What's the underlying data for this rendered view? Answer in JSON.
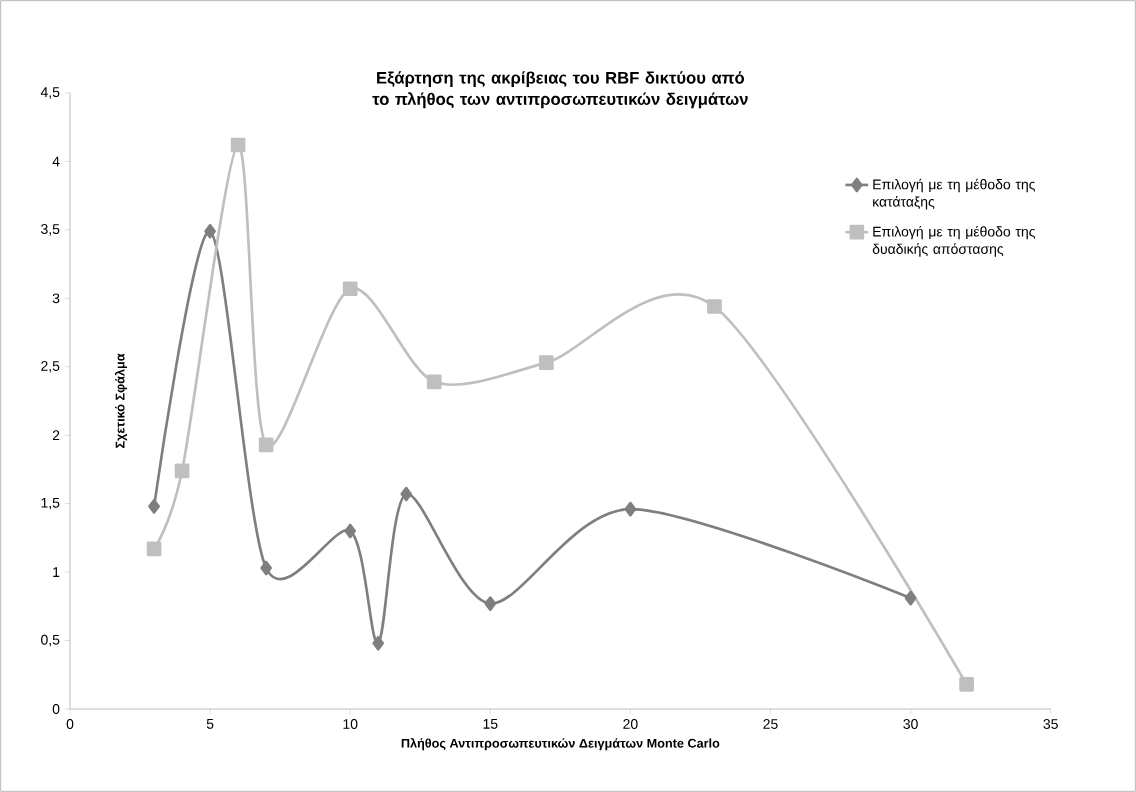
{
  "chart_data": {
    "type": "line",
    "title": "Εξάρτηση της ακρίβειας του RBF δικτύου από το πλήθος των αντιπροσωπευτικών δειγμάτων",
    "xlabel": "Πλήθος Αντιπροσωπευτικών Δειγμάτων Monte Carlo",
    "ylabel": "Σχετικό Σφάλμα",
    "series": [
      {
        "name": "Επιλογή με τη μέθοδο της κατάταξης",
        "color": "#7f7f7f",
        "marker": "diamond",
        "x": [
          3,
          5,
          7,
          10,
          11,
          12,
          15,
          20,
          30
        ],
        "values": [
          1.48,
          3.49,
          1.03,
          1.3,
          0.48,
          1.57,
          0.77,
          1.46,
          0.81
        ]
      },
      {
        "name": "Επιλογή με τη μέθοδο της δυαδικής απόστασης",
        "color": "#bfbfbf",
        "marker": "square",
        "x": [
          3,
          4,
          6,
          7,
          10,
          13,
          17,
          23,
          32
        ],
        "values": [
          1.17,
          1.74,
          4.12,
          1.93,
          3.07,
          2.39,
          2.53,
          2.94,
          0.18
        ]
      }
    ],
    "xlim": [
      0,
      35
    ],
    "xticks": [
      0,
      5,
      10,
      15,
      20,
      25,
      30,
      35
    ],
    "ylim": [
      0,
      4.5
    ],
    "yticks": [
      0,
      {
        "value": 0.5,
        "label": "0,5"
      },
      1,
      {
        "value": 1.5,
        "label": "1,5"
      },
      2,
      {
        "value": 2.5,
        "label": "2,5"
      },
      3,
      {
        "value": 3.5,
        "label": "3,5"
      },
      4,
      {
        "value": 4.5,
        "label": "4,5"
      }
    ],
    "legend": "right",
    "grid": false,
    "line_style": "solid"
  }
}
